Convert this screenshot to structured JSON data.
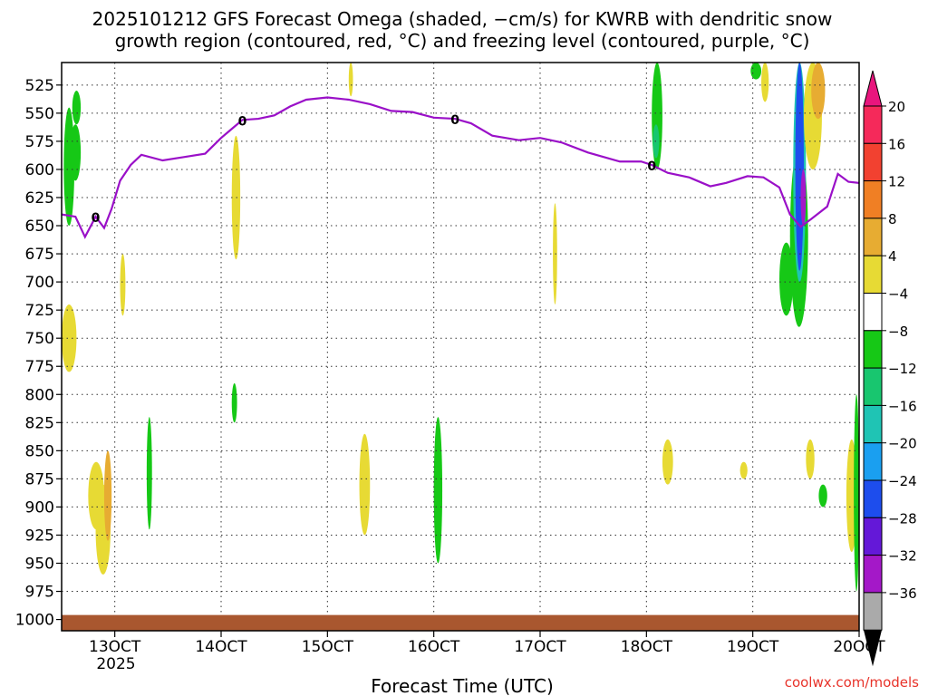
{
  "title_line1": "2025101212 GFS Forecast Omega (shaded, −cm/s) for KWRB with dendritic snow",
  "title_line2": "growth region (contoured, red, °C) and freezing level (contoured, purple, °C)",
  "xlabel": "Forecast Time (UTC)",
  "credit": "coolwx.com/models",
  "chart_data": {
    "type": "heatmap",
    "x_ticks": [
      "13OCT",
      "14OCT",
      "15OCT",
      "16OCT",
      "17OCT",
      "18OCT",
      "19OCT",
      "20OCT"
    ],
    "x_year_label": "2025",
    "x_range_days": [
      12.5,
      20.0
    ],
    "y_ticks": [
      525,
      550,
      575,
      600,
      625,
      650,
      675,
      700,
      725,
      750,
      775,
      800,
      825,
      850,
      875,
      900,
      925,
      950,
      975,
      1000
    ],
    "y_range_hpa": [
      505,
      1010
    ],
    "grid": true,
    "colorbar": {
      "labels": [
        20,
        16,
        12,
        8,
        4,
        -4,
        -8,
        -12,
        -16,
        -20,
        -24,
        -28,
        -32,
        -36
      ],
      "colors": [
        "#f5295a",
        "#f24130",
        "#f07f24",
        "#e7ac32",
        "#e7da34",
        "#ffffff",
        "#16c816",
        "#18c66f",
        "#1fc4b4",
        "#1a9ff0",
        "#1d4ded",
        "#6418d8",
        "#a418c8",
        "#aaaaaa"
      ],
      "top_arrow_color": "#e8157d",
      "bottom_arrow_color": "#000000"
    },
    "freezing_level": {
      "color": "#9a10c8",
      "label": "0",
      "points": [
        [
          12.5,
          640
        ],
        [
          12.63,
          642
        ],
        [
          12.72,
          660
        ],
        [
          12.82,
          642
        ],
        [
          12.9,
          652
        ],
        [
          12.97,
          635
        ],
        [
          13.05,
          610
        ],
        [
          13.15,
          596
        ],
        [
          13.25,
          587
        ],
        [
          13.45,
          592
        ],
        [
          13.65,
          589
        ],
        [
          13.85,
          586
        ],
        [
          14.0,
          572
        ],
        [
          14.1,
          564
        ],
        [
          14.2,
          556
        ],
        [
          14.35,
          555
        ],
        [
          14.5,
          552
        ],
        [
          14.65,
          544
        ],
        [
          14.8,
          538
        ],
        [
          15.0,
          536
        ],
        [
          15.2,
          538
        ],
        [
          15.4,
          542
        ],
        [
          15.6,
          548
        ],
        [
          15.8,
          549
        ],
        [
          16.0,
          554
        ],
        [
          16.2,
          555
        ],
        [
          16.35,
          559
        ],
        [
          16.55,
          570
        ],
        [
          16.8,
          574
        ],
        [
          17.0,
          572
        ],
        [
          17.2,
          576
        ],
        [
          17.45,
          585
        ],
        [
          17.6,
          589
        ],
        [
          17.75,
          593
        ],
        [
          17.95,
          593
        ],
        [
          18.05,
          596
        ],
        [
          18.2,
          603
        ],
        [
          18.4,
          607
        ],
        [
          18.6,
          615
        ],
        [
          18.75,
          612
        ],
        [
          18.95,
          606
        ],
        [
          19.1,
          607
        ],
        [
          19.25,
          616
        ],
        [
          19.35,
          640
        ],
        [
          19.45,
          651
        ],
        [
          19.55,
          644
        ],
        [
          19.7,
          633
        ],
        [
          19.8,
          604
        ],
        [
          19.9,
          611
        ],
        [
          20.0,
          612
        ]
      ]
    },
    "terrain": {
      "color": "#a9572f",
      "top_hpa": 996
    }
  }
}
